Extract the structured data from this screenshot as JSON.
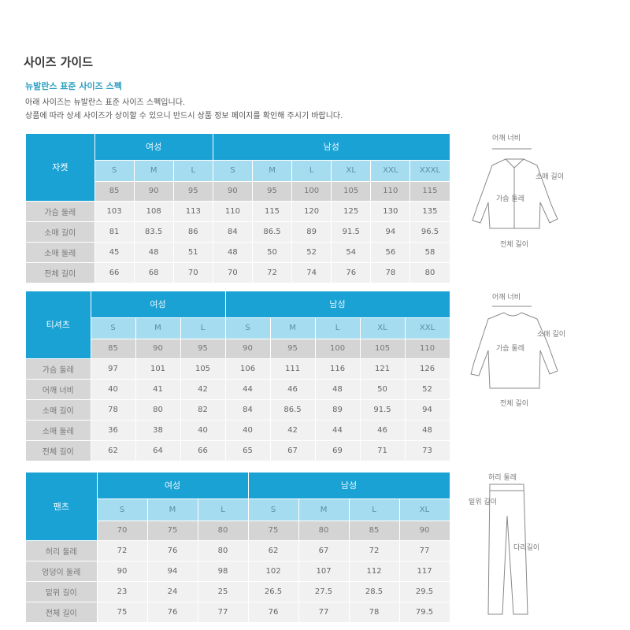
{
  "title": "사이즈 가이드",
  "subtitle": "뉴발란스 표준 사이즈 스펙",
  "desc": [
    "아래 사이즈는 뉴발란스 표준 사이즈 스펙입니다.",
    "상품에 따라 상세 사이즈가 상이할 수 있으니 반드시 상품 정보 페이지를 확인해 주시기 바랍니다."
  ],
  "tables": [
    {
      "category": "자켓",
      "women": "여성",
      "men": "남성",
      "women_count": 3,
      "sizes": [
        "S",
        "M",
        "L",
        "S",
        "M",
        "L",
        "XL",
        "XXL",
        "XXXL"
      ],
      "numbers": [
        "85",
        "90",
        "95",
        "90",
        "95",
        "100",
        "105",
        "110",
        "115"
      ],
      "rows": [
        {
          "label": "가슴 둘레",
          "values": [
            "103",
            "108",
            "113",
            "110",
            "115",
            "120",
            "125",
            "130",
            "135"
          ]
        },
        {
          "label": "소매 길이",
          "values": [
            "81",
            "83.5",
            "86",
            "84",
            "86.5",
            "89",
            "91.5",
            "94",
            "96.5"
          ]
        },
        {
          "label": "소매 둘레",
          "values": [
            "45",
            "48",
            "51",
            "48",
            "50",
            "52",
            "54",
            "56",
            "58"
          ]
        },
        {
          "label": "전체 길이",
          "values": [
            "66",
            "68",
            "70",
            "70",
            "72",
            "74",
            "76",
            "78",
            "80"
          ]
        }
      ],
      "diagram": {
        "labels": [
          "어깨 너비",
          "소매 길이",
          "가슴 둘레",
          "전체 길이"
        ]
      }
    },
    {
      "category": "티셔츠",
      "women": "여성",
      "men": "남성",
      "women_count": 3,
      "sizes": [
        "S",
        "M",
        "L",
        "S",
        "M",
        "L",
        "XL",
        "XXL"
      ],
      "numbers": [
        "85",
        "90",
        "95",
        "90",
        "95",
        "100",
        "105",
        "110"
      ],
      "rows": [
        {
          "label": "가슴 둘레",
          "values": [
            "97",
            "101",
            "105",
            "106",
            "111",
            "116",
            "121",
            "126"
          ]
        },
        {
          "label": "어깨 너비",
          "values": [
            "40",
            "41",
            "42",
            "44",
            "46",
            "48",
            "50",
            "52"
          ]
        },
        {
          "label": "소매 길이",
          "values": [
            "78",
            "80",
            "82",
            "84",
            "86.5",
            "89",
            "91.5",
            "94"
          ]
        },
        {
          "label": "소매 둘레",
          "values": [
            "36",
            "38",
            "40",
            "40",
            "42",
            "44",
            "46",
            "48"
          ]
        },
        {
          "label": "전체 길이",
          "values": [
            "62",
            "64",
            "66",
            "65",
            "67",
            "69",
            "71",
            "73"
          ]
        }
      ],
      "diagram": {
        "labels": [
          "어깨 너비",
          "소매 길이",
          "가슴 둘레",
          "전체 길이"
        ]
      }
    },
    {
      "category": "팬츠",
      "women": "여성",
      "men": "남성",
      "women_count": 3,
      "sizes": [
        "S",
        "M",
        "L",
        "S",
        "M",
        "L",
        "XL"
      ],
      "numbers": [
        "70",
        "75",
        "80",
        "75",
        "80",
        "85",
        "90"
      ],
      "rows": [
        {
          "label": "허리 둘레",
          "values": [
            "72",
            "76",
            "80",
            "62",
            "67",
            "72",
            "77"
          ]
        },
        {
          "label": "엉덩이 둘레",
          "values": [
            "90",
            "94",
            "98",
            "102",
            "107",
            "112",
            "117"
          ]
        },
        {
          "label": "밑위 길이",
          "values": [
            "23",
            "24",
            "25",
            "26.5",
            "27.5",
            "28.5",
            "29.5"
          ]
        },
        {
          "label": "전체 길이",
          "values": [
            "75",
            "76",
            "77",
            "76",
            "77",
            "78",
            "79.5"
          ]
        }
      ],
      "diagram": {
        "labels": [
          "허리 둘레",
          "밑위 길이",
          "다리길이"
        ]
      }
    }
  ],
  "colors": {
    "header": "#1aa2d5",
    "size_row": "#a6dcef",
    "label_col": "#d6d6d6",
    "cell": "#f1f1f1"
  }
}
